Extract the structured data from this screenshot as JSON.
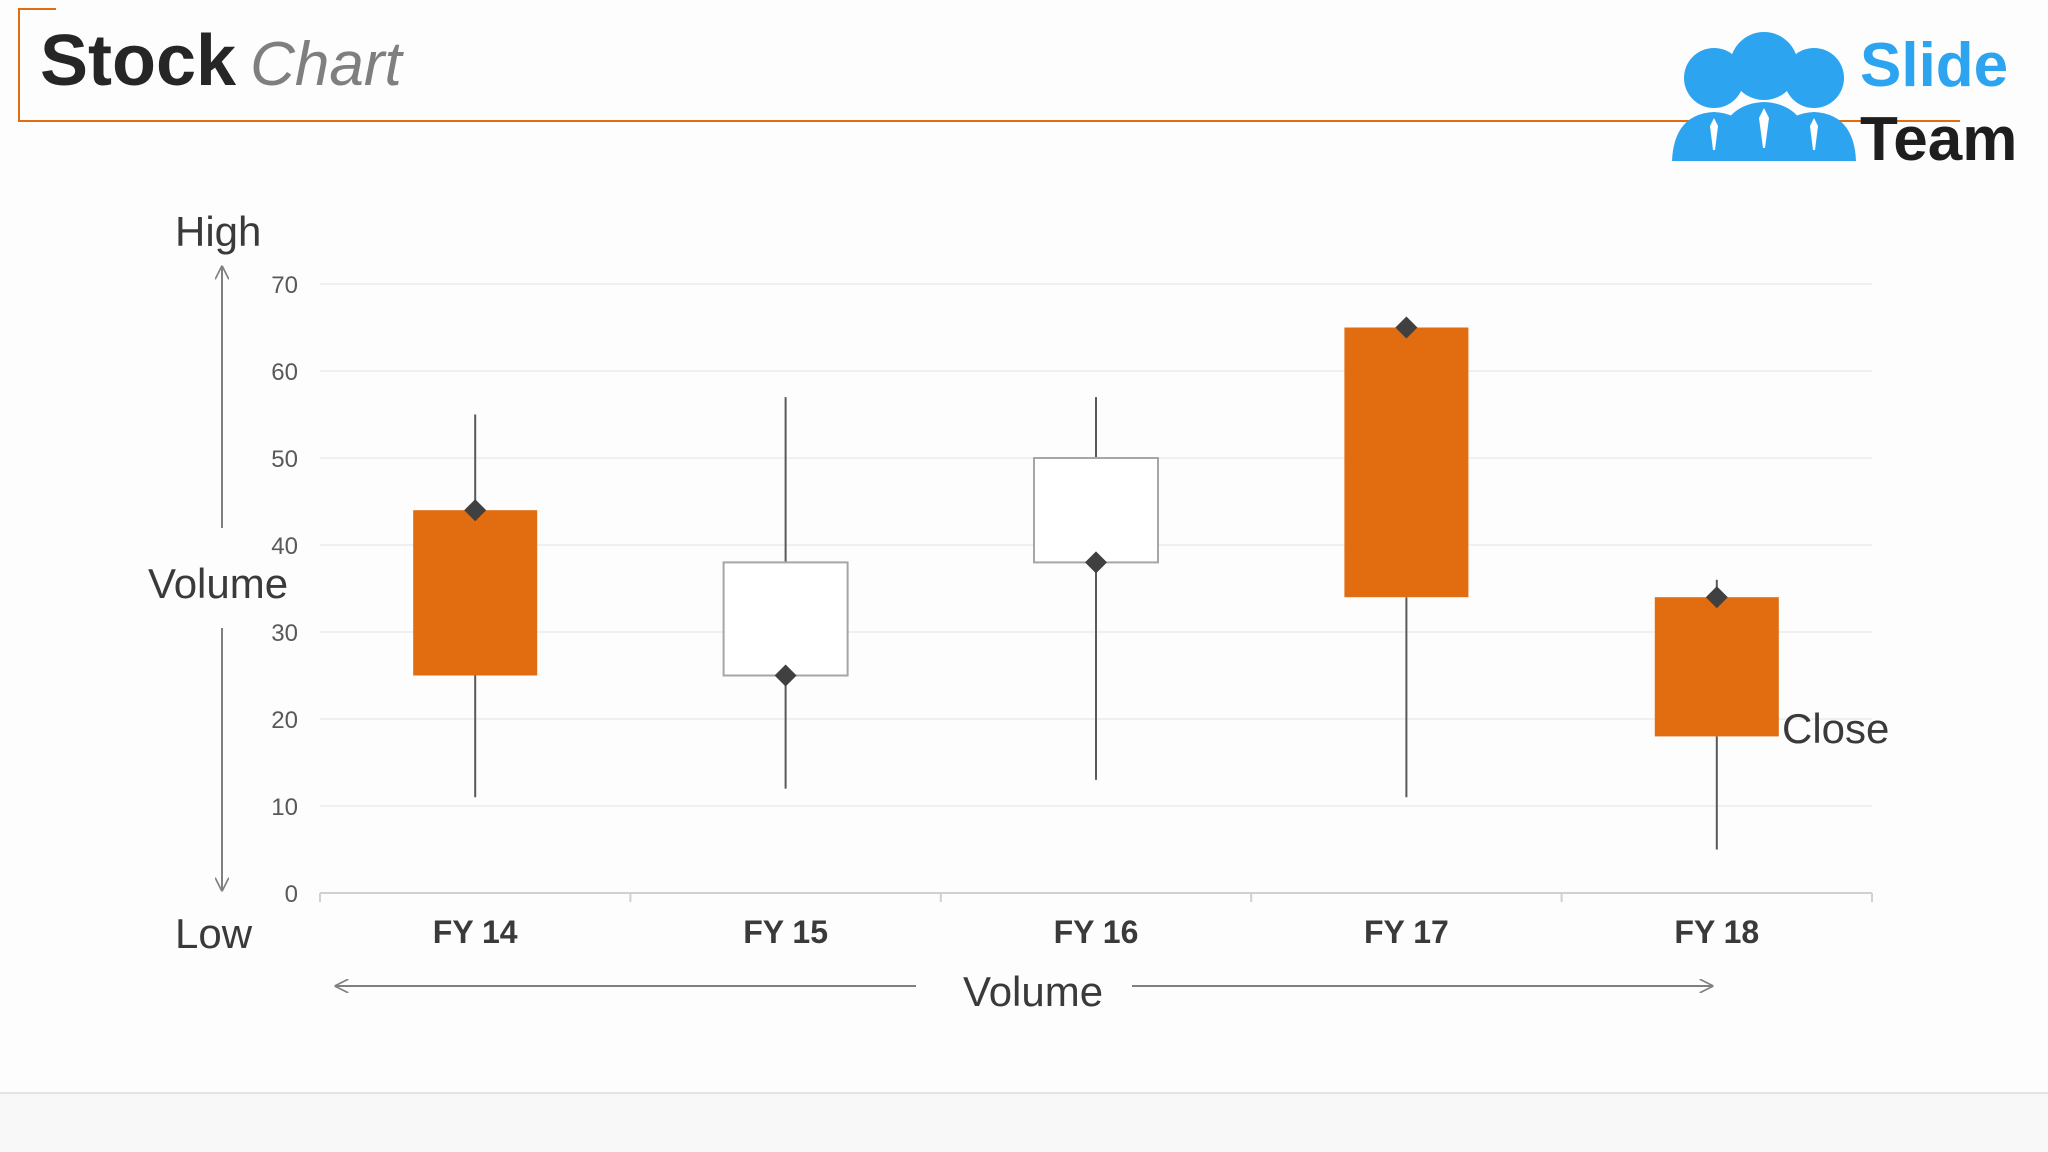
{
  "title": {
    "bold": "Stock",
    "light": "Chart"
  },
  "logo": {
    "line1": "Slide",
    "line2": "Team",
    "brand_blue": "#2da4f0",
    "brand_dark": "#1e1e1e"
  },
  "accent_color": "#e26c10",
  "annotations": {
    "high": "High",
    "low": "Low",
    "volume_vertical": "Volume",
    "volume_horizontal": "Volume",
    "close": "Close"
  },
  "chart_data": {
    "type": "candlestick",
    "categories": [
      "FY 14",
      "FY 15",
      "FY 16",
      "FY 17",
      "FY 18"
    ],
    "ylim": [
      0,
      70
    ],
    "yticks": [
      0,
      10,
      20,
      30,
      40,
      50,
      60,
      70
    ],
    "grid": true,
    "series": [
      {
        "category": "FY 14",
        "open": 25,
        "high": 55,
        "low": 11,
        "close": 44,
        "marker": 44
      },
      {
        "category": "FY 15",
        "open": 38,
        "high": 57,
        "low": 12,
        "close": 25,
        "marker": 25
      },
      {
        "category": "FY 16",
        "open": 50,
        "high": 57,
        "low": 13,
        "close": 38,
        "marker": 38
      },
      {
        "category": "FY 17",
        "open": 34,
        "high": 65,
        "low": 11,
        "close": 65,
        "marker": 65
      },
      {
        "category": "FY 18",
        "open": 18,
        "high": 36,
        "low": 5,
        "close": 34,
        "marker": 34
      }
    ],
    "colors": {
      "up": "#e26c10",
      "down": "#ffffff",
      "down_border": "#a6a6a6",
      "wick": "#595959",
      "marker": "#404040"
    }
  }
}
